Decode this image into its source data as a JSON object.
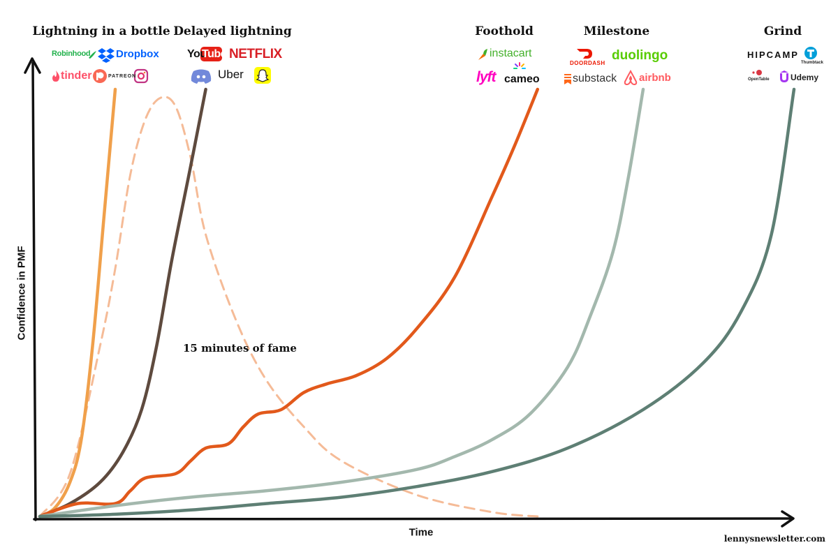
{
  "chart_data": {
    "type": "line",
    "title": "",
    "xlabel": "Time",
    "ylabel": "Confidence in PMF",
    "xlim": [
      0,
      100
    ],
    "ylim": [
      0,
      100
    ],
    "grid": false,
    "legend": "none",
    "annotation": "15 minutes of fame",
    "credit": "lennysnewsletter.com",
    "series": [
      {
        "category": "Lightning in a bottle",
        "color": "#f0a04b",
        "style": "solid",
        "x": [
          0,
          2,
          4,
          5.5,
          7,
          8.5,
          10
        ],
        "y": [
          0,
          2,
          8,
          18,
          40,
          70,
          100
        ],
        "logos": [
          "Robinhood",
          "Dropbox",
          "tinder",
          "PATREON",
          "instagram"
        ]
      },
      {
        "category": "Delayed lightning",
        "color": "#5e4a3e",
        "style": "solid",
        "x": [
          0,
          4,
          8,
          11,
          13.5,
          15.5,
          17.5,
          20,
          22
        ],
        "y": [
          0,
          3,
          8,
          15,
          25,
          40,
          60,
          82,
          100
        ],
        "logos": [
          "YouTube",
          "NETFLIX",
          "discord",
          "Uber",
          "snapchat"
        ]
      },
      {
        "category": "Foothold",
        "color": "#e2591b",
        "style": "solid",
        "x": [
          0,
          5,
          10,
          12,
          14,
          18,
          20,
          22,
          25,
          27,
          29,
          32,
          35,
          38,
          42,
          46,
          50,
          55,
          60,
          63,
          66
        ],
        "y": [
          0,
          3,
          3,
          6,
          9,
          10,
          13,
          16,
          17,
          21,
          24,
          25,
          29,
          31,
          33,
          37,
          44,
          56,
          75,
          87,
          100
        ],
        "logos": [
          "instacart",
          "lyft",
          "cameo"
        ]
      },
      {
        "category": "Milestone",
        "color": "#a3b8ad",
        "style": "solid",
        "x": [
          0,
          10,
          20,
          30,
          40,
          50,
          55,
          60,
          65,
          70,
          73,
          76,
          78,
          80
        ],
        "y": [
          0,
          2.5,
          4.5,
          6,
          8,
          11,
          14,
          18,
          24,
          35,
          47,
          62,
          79,
          100
        ],
        "logos": [
          "DOORDASH",
          "duolingo",
          "substack",
          "airbnb"
        ]
      },
      {
        "category": "Grind",
        "color": "#5e7f74",
        "style": "solid",
        "x": [
          0,
          10,
          20,
          30,
          40,
          50,
          60,
          70,
          80,
          88,
          93,
          97,
          100
        ],
        "y": [
          0,
          0.5,
          1.5,
          3,
          4.5,
          7,
          10.5,
          16,
          25,
          36,
          48,
          66,
          100
        ],
        "logos": [
          "HIPCAMP",
          "Thumbtack",
          "OpenTable",
          "Udemy"
        ]
      },
      {
        "category": "15 minutes of fame",
        "color": "#f5bb97",
        "style": "dashed",
        "x": [
          0,
          4,
          8,
          10,
          12,
          14,
          16,
          18,
          20,
          22,
          26,
          30,
          35,
          40,
          50,
          60,
          66
        ],
        "y": [
          0,
          10,
          40,
          58,
          80,
          93,
          98,
          96,
          84,
          66,
          46,
          32,
          21,
          13,
          5,
          1,
          0
        ]
      }
    ]
  },
  "categories": [
    {
      "title": "Lightning in a bottle"
    },
    {
      "title": "Delayed lightning"
    },
    {
      "title": "Foothold"
    },
    {
      "title": "Milestone"
    },
    {
      "title": "Grind"
    }
  ],
  "logos": {
    "robinhood": "Robinhood",
    "dropbox": "Dropbox",
    "tinder": "tinder",
    "patreon": "PATREON",
    "youtube_you": "You",
    "youtube_tube": "Tube",
    "netflix": "NETFLIX",
    "uber": "Uber",
    "instacart": "instacart",
    "lyft": "lyft",
    "cameo": "cameo",
    "doordash": "DOORDASH",
    "duolingo": "duolingo",
    "substack": "substack",
    "airbnb": "airbnb",
    "hipcamp": "HIPCAMP",
    "thumbtack": "Thumbtack",
    "opentable": "OpenTable",
    "udemy": "Udemy"
  },
  "icons": [
    "robinhood-feather-icon",
    "dropbox-icon",
    "tinder-flame-icon",
    "patreon-icon",
    "instagram-icon",
    "discord-icon",
    "snapchat-icon",
    "instacart-carrot-icon",
    "cameo-burst-icon",
    "doordash-icon",
    "substack-icon",
    "airbnb-icon",
    "thumbtack-icon",
    "opentable-icon",
    "udemy-icon"
  ]
}
